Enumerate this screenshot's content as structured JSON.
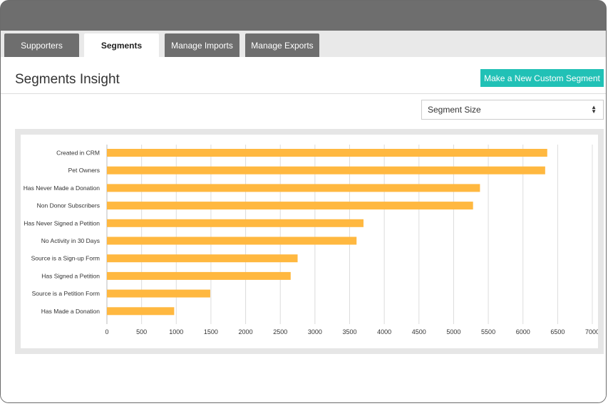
{
  "tabs": [
    {
      "label": "Supporters",
      "active": false
    },
    {
      "label": "Segments",
      "active": true
    },
    {
      "label": "Manage Imports",
      "active": false
    },
    {
      "label": "Manage Exports",
      "active": false
    }
  ],
  "page": {
    "title": "Segments Insight",
    "new_segment_button": "Make a New Custom Segment",
    "metric_select": {
      "selected": "Segment Size",
      "icon": "sort-arrows-icon"
    }
  },
  "colors": {
    "accent": "#21c1b6",
    "bar": "#ffb840",
    "tab_inactive": "#6e6e6e"
  },
  "chart_data": {
    "type": "bar",
    "orientation": "horizontal",
    "categories": [
      "Created in CRM",
      "Pet Owners",
      "Has Never Made a Donation",
      "Non Donor Subscribers",
      "Has Never Signed a Petition",
      "No Activity in 30 Days",
      "Source is a Sign-up Form",
      "Has Signed a Petition",
      "Source is a Petition Form",
      "Has Made a Donation"
    ],
    "values": [
      6350,
      6320,
      5380,
      5280,
      3700,
      3600,
      2750,
      2650,
      1490,
      970
    ],
    "xlim": [
      0,
      7000
    ],
    "xticks": [
      "0",
      "500",
      "1000",
      "1500",
      "2000",
      "2500",
      "3000",
      "3500",
      "4000",
      "4500",
      "5000",
      "5500",
      "6000",
      "6500",
      "7000"
    ],
    "grid": true,
    "title": "",
    "xlabel": "",
    "ylabel": ""
  }
}
